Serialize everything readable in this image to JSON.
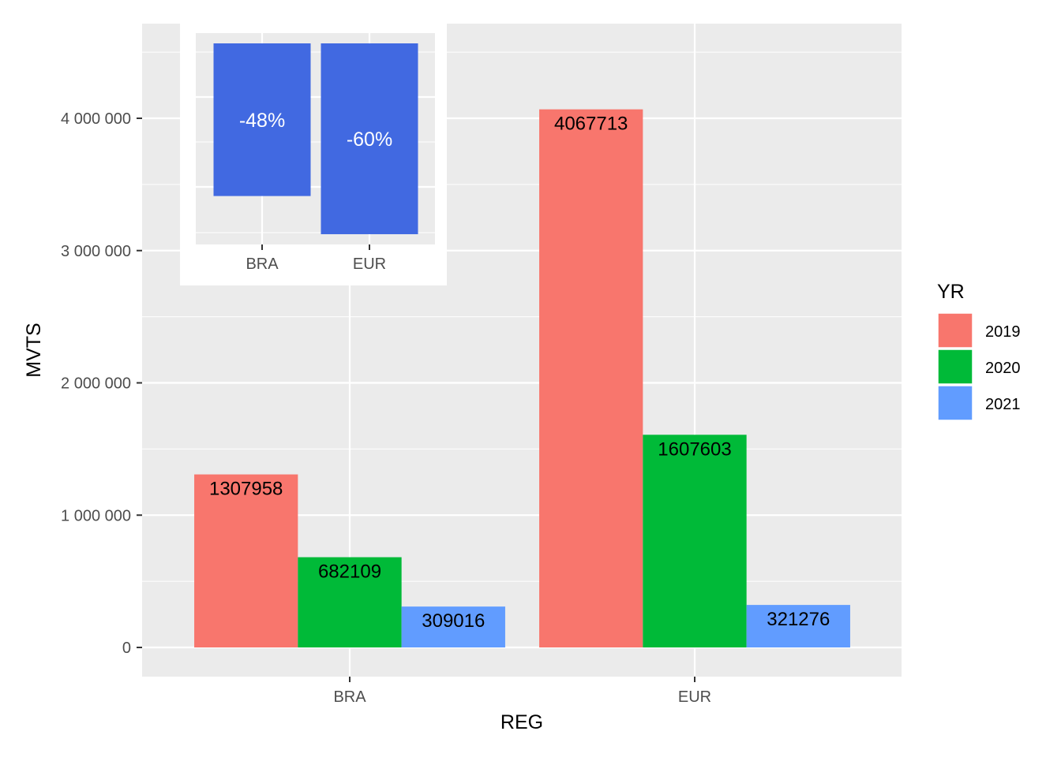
{
  "chart_data": [
    {
      "type": "bar",
      "categories": [
        "BRA",
        "EUR"
      ],
      "series": [
        {
          "name": "2019",
          "color": "#F8766D",
          "values": [
            1307958,
            4067713
          ]
        },
        {
          "name": "2020",
          "color": "#00BA38",
          "values": [
            682109,
            1607603
          ]
        },
        {
          "name": "2021",
          "color": "#619CFF",
          "values": [
            309016,
            321276
          ]
        }
      ],
      "data_labels": [
        [
          "1307958",
          "4067713"
        ],
        [
          "682109",
          "1607603"
        ],
        [
          "309016",
          "321276"
        ]
      ],
      "xlabel": "REG",
      "ylabel": "MVTS",
      "ylim": [
        -220000,
        4750000
      ],
      "yticks": [
        0,
        1000000,
        2000000,
        3000000,
        4000000
      ],
      "ytick_labels": [
        "0",
        "1 000 000",
        "2 000 000",
        "3 000 000",
        "4 000 000"
      ],
      "legend": {
        "title": "YR",
        "position": "right"
      },
      "grid": true
    },
    {
      "type": "bar",
      "categories": [
        "BRA",
        "EUR"
      ],
      "values": [
        -48,
        -60
      ],
      "data_labels": [
        "-48%",
        "-60%"
      ],
      "color": "#4169E1",
      "direction": "downward",
      "grid": true
    }
  ]
}
